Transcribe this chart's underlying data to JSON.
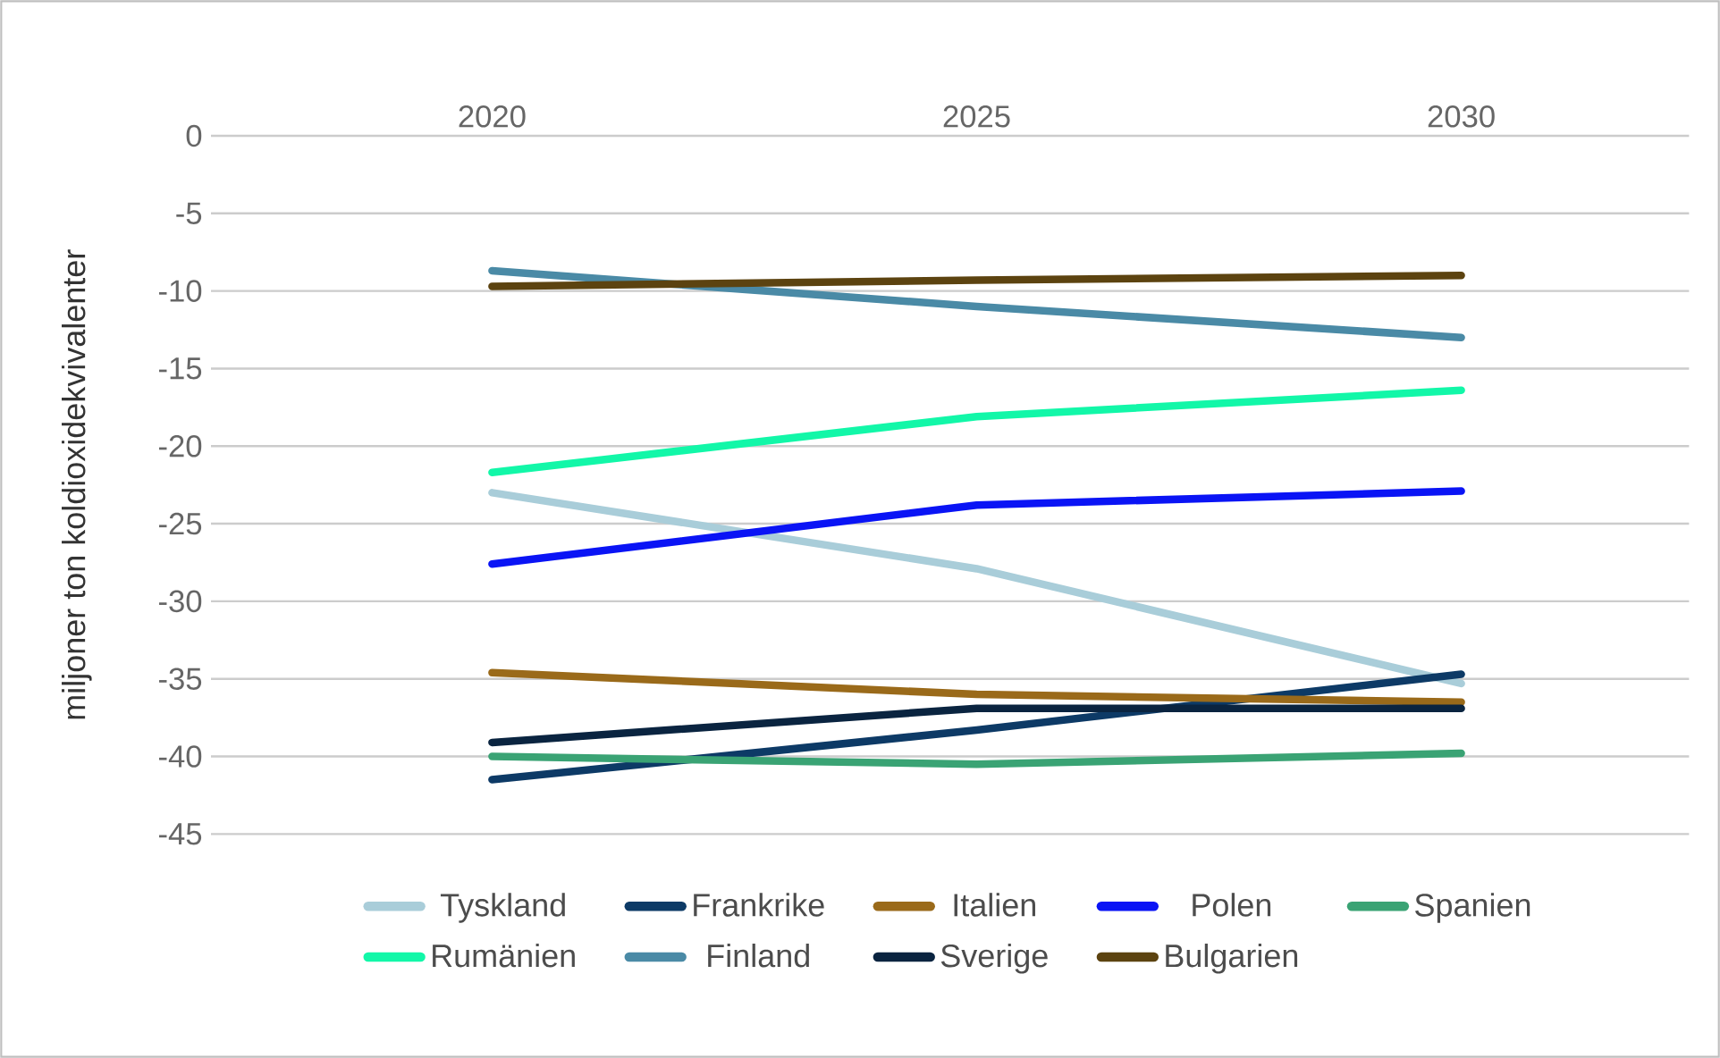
{
  "chart_data": {
    "type": "line",
    "ylabel": "miljoner ton koldioxidekvivalenter",
    "categories": [
      "2020",
      "2025",
      "2030"
    ],
    "series": [
      {
        "name": "Tyskland",
        "color": "#a9cdd9",
        "values": [
          -23.0,
          -27.9,
          -35.3
        ]
      },
      {
        "name": "Frankrike",
        "color": "#0d3a66",
        "values": [
          -41.5,
          -38.3,
          -34.7
        ]
      },
      {
        "name": "Italien",
        "color": "#9a6a1a",
        "values": [
          -34.6,
          -36.0,
          -36.5
        ]
      },
      {
        "name": "Polen",
        "color": "#0a14f5",
        "values": [
          -27.6,
          -23.8,
          -22.9
        ]
      },
      {
        "name": "Spanien",
        "color": "#3aa374",
        "values": [
          -40.0,
          -40.5,
          -39.8
        ]
      },
      {
        "name": "Rumänien",
        "color": "#12f7a8",
        "values": [
          -21.7,
          -18.1,
          -16.4
        ]
      },
      {
        "name": "Finland",
        "color": "#4a8aa6",
        "values": [
          -8.7,
          -11.0,
          -13.0
        ]
      },
      {
        "name": "Sverige",
        "color": "#0a2440",
        "values": [
          -39.1,
          -36.9,
          -36.9
        ]
      },
      {
        "name": "Bulgarien",
        "color": "#5c4310",
        "values": [
          -9.7,
          -9.3,
          -9.0
        ]
      }
    ],
    "ylim": [
      -45,
      0
    ],
    "yticks": [
      -45,
      -40,
      -35,
      -30,
      -25,
      -20,
      -15,
      -10,
      -5,
      0
    ],
    "grid": "y",
    "legend": "bottom",
    "marker": "none",
    "line_style": "solid"
  }
}
